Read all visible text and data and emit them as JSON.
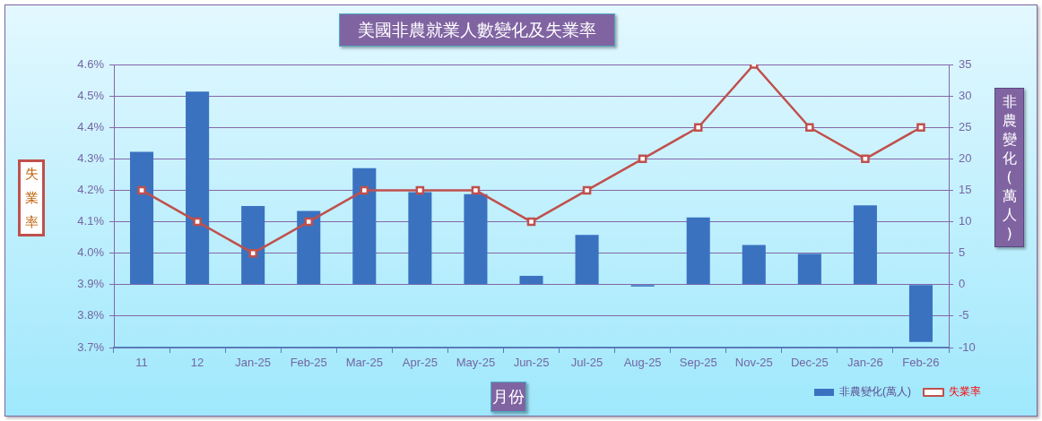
{
  "chart_data": {
    "type": "bar",
    "title": "美國非農就業人數變化及失業率",
    "xlabel": "月份",
    "ylabel": "失業率",
    "y2label": "非農變化(萬人)",
    "categories": [
      "11",
      "12",
      "Jan-25",
      "Feb-25",
      "Mar-25",
      "Apr-25",
      "May-25",
      "Jun-25",
      "Jul-25",
      "Aug-25",
      "Sep-25",
      "Nov-25",
      "Dec-25",
      "Jan-26",
      "Feb-26"
    ],
    "series": [
      {
        "name": "非農變化(萬人)",
        "axis": "y2",
        "color": "#3a72c0",
        "values": [
          21.1,
          30.7,
          12.5,
          11.7,
          18.5,
          14.7,
          14.4,
          1.4,
          7.9,
          -0.3,
          10.7,
          6.3,
          4.9,
          12.6,
          -9.1
        ]
      },
      {
        "name": "失業率",
        "type": "line",
        "color": "#c0504d",
        "values": [
          4.2,
          4.1,
          4.0,
          4.1,
          4.2,
          4.2,
          4.2,
          4.1,
          4.2,
          4.3,
          4.4,
          4.6,
          4.4,
          4.3,
          4.4
        ]
      }
    ],
    "ylim": [
      3.7,
      4.6
    ],
    "yticks": [
      {
        "value": 3.7,
        "label": "3.7%"
      },
      {
        "value": 3.8,
        "label": "3.8%"
      },
      {
        "value": 3.9,
        "label": "3.9%"
      },
      {
        "value": 4.0,
        "label": "4.0%"
      },
      {
        "value": 4.1,
        "label": "4.1%"
      },
      {
        "value": 4.2,
        "label": "4.2%"
      },
      {
        "value": 4.3,
        "label": "4.3%"
      },
      {
        "value": 4.4,
        "label": "4.4%"
      },
      {
        "value": 4.5,
        "label": "4.5%"
      },
      {
        "value": 4.6,
        "label": "4.6%"
      }
    ],
    "y2lim": [
      -10,
      35
    ],
    "y2ticks": [
      -10,
      -5,
      0,
      5,
      10,
      15,
      20,
      25,
      30,
      35
    ],
    "grid": "y",
    "legend": "bottom right",
    "marker": "square"
  }
}
